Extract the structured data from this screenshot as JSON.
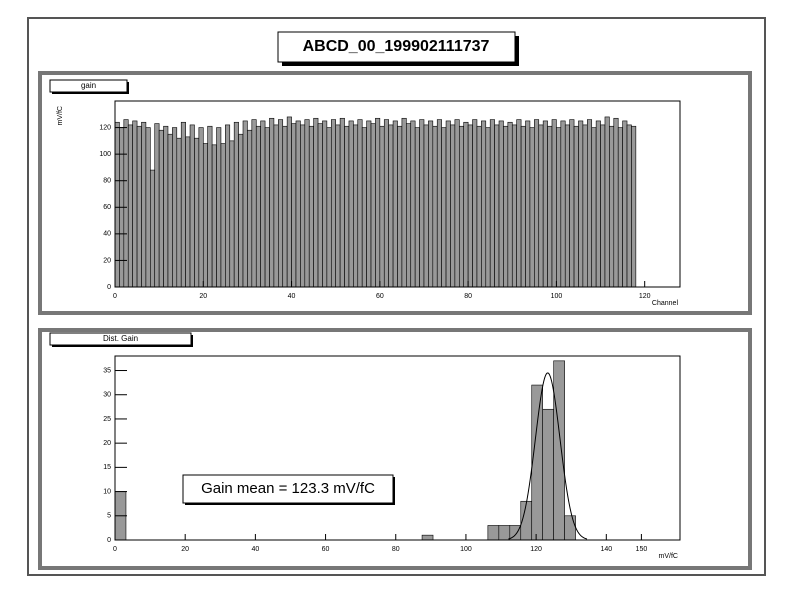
{
  "canvas_title": "ABCD_00_199902111737",
  "chart_data": [
    {
      "type": "histogram",
      "title": "gain",
      "ylabel": "mV/fC",
      "xlabel": "Channel",
      "color": "#999999",
      "bins": [
        0,
        1,
        2,
        3,
        4,
        5,
        6,
        7,
        8,
        9,
        10,
        11,
        12,
        13,
        14,
        15,
        16,
        17,
        18,
        19,
        20,
        21,
        22,
        23,
        24,
        25,
        26,
        27,
        28,
        29,
        30,
        31,
        32,
        33,
        34,
        35,
        36,
        37,
        38,
        39,
        40,
        41,
        42,
        43,
        44,
        45,
        46,
        47,
        48,
        49,
        50,
        51,
        52,
        53,
        54,
        55,
        56,
        57,
        58,
        59,
        60,
        61,
        62,
        63,
        64,
        65,
        66,
        67,
        68,
        69,
        70,
        71,
        72,
        73,
        74,
        75,
        76,
        77,
        78,
        79,
        80,
        81,
        82,
        83,
        84,
        85,
        86,
        87,
        88,
        89,
        90,
        91,
        92,
        93,
        94,
        95,
        96,
        97,
        98,
        99,
        100,
        101,
        102,
        103,
        104,
        105,
        106,
        107,
        108,
        109,
        110,
        111,
        112,
        113,
        114,
        115,
        116,
        117,
        118
      ],
      "values": [
        124,
        120,
        126,
        122,
        125,
        121,
        124,
        120,
        88,
        123,
        118,
        121,
        115,
        120,
        112,
        124,
        113,
        122,
        112,
        120,
        108,
        121,
        107,
        120,
        108,
        122,
        110,
        124,
        115,
        125,
        118,
        126,
        121,
        125,
        120,
        127,
        122,
        126,
        121,
        128,
        123,
        125,
        122,
        126,
        121,
        127,
        123,
        125,
        120,
        126,
        122,
        127,
        121,
        125,
        122,
        126,
        120,
        125,
        123,
        127,
        121,
        126,
        122,
        125,
        121,
        127,
        123,
        125,
        120,
        126,
        122,
        125,
        121,
        126,
        120,
        125,
        122,
        126,
        121,
        124,
        122,
        126,
        121,
        125,
        120,
        126,
        122,
        125,
        121,
        124,
        122,
        126,
        121,
        125,
        120,
        126,
        122,
        125,
        121,
        126,
        120,
        125,
        122,
        126,
        121,
        125,
        122,
        126,
        120,
        125,
        122,
        128,
        121,
        127,
        120,
        125,
        122,
        121
      ],
      "xlim": [
        0,
        128
      ],
      "xticks": [
        0,
        20,
        40,
        60,
        80,
        100,
        120
      ],
      "ylim": [
        0,
        140
      ],
      "yticks": [
        0,
        20,
        40,
        60,
        80,
        100,
        120
      ]
    },
    {
      "type": "histogram",
      "title": "Dist. Gain",
      "xlabel": "mV/fC",
      "color": "#999999",
      "bins": [
        0,
        3.125,
        6.25,
        9.375,
        12.5,
        15.625,
        18.75,
        21.875,
        25,
        28.125,
        31.25,
        34.375,
        37.5,
        40.625,
        43.75,
        46.875,
        50,
        53.125,
        56.25,
        59.375,
        62.5,
        65.625,
        68.75,
        71.875,
        75,
        78.125,
        81.25,
        84.375,
        87.5,
        90.625,
        93.75,
        96.875,
        100,
        103.125,
        106.25,
        109.375,
        112.5,
        115.625,
        118.75,
        121.875,
        125,
        128.125,
        131.25,
        134.375,
        137.5,
        140.625,
        143.75,
        146.875,
        150
      ],
      "values": [
        10,
        0,
        0,
        0,
        0,
        0,
        0,
        0,
        0,
        0,
        0,
        0,
        0,
        0,
        0,
        0,
        0,
        0,
        0,
        0,
        0,
        0,
        0,
        0,
        0,
        0,
        0,
        0,
        1,
        0,
        0,
        0,
        0,
        0,
        3,
        3,
        3,
        8,
        32,
        27,
        37,
        5,
        0,
        0,
        0,
        0,
        0,
        0
      ],
      "fit": {
        "constant": 34.5,
        "mean": 123.3,
        "sigma": 3.5
      },
      "annotation": "Gain mean = 123.3 mV/fC",
      "xlim": [
        0,
        161
      ],
      "xticks": [
        0,
        20,
        40,
        60,
        80,
        100,
        120,
        140,
        150
      ],
      "ylim": [
        0,
        38
      ],
      "yticks": [
        0,
        5,
        10,
        15,
        20,
        25,
        30,
        35
      ]
    }
  ]
}
